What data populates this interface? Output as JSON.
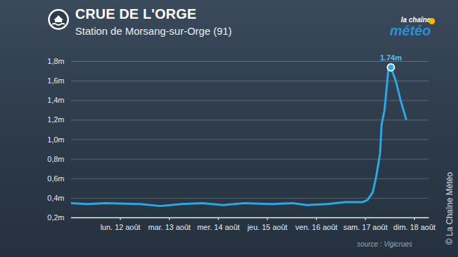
{
  "chart_data": {
    "type": "line",
    "title": "CRUE DE L'ORGE",
    "subtitle": "Station de Morsang-sur-Orge (91)",
    "logo": [
      "la chaîne",
      "météo"
    ],
    "source": "source : Vigicrues",
    "credit": "© La Chaîne Météo",
    "color": "#2aa9e6",
    "x": [
      11.0,
      11.33,
      11.69,
      12.4,
      12.82,
      13.25,
      13.67,
      14.1,
      14.52,
      15.09,
      15.52,
      15.8,
      16.23,
      16.58,
      16.94,
      17.04,
      17.15,
      17.22,
      17.3,
      17.33,
      17.39,
      17.47,
      17.52,
      17.62,
      17.72,
      17.83
    ],
    "values": [
      0.35,
      0.34,
      0.35,
      0.34,
      0.32,
      0.34,
      0.35,
      0.33,
      0.35,
      0.34,
      0.35,
      0.33,
      0.34,
      0.36,
      0.36,
      0.38,
      0.46,
      0.62,
      0.86,
      1.15,
      1.3,
      1.72,
      1.74,
      1.6,
      1.4,
      1.21
    ],
    "xlim": [
      11,
      18.3
    ],
    "xticks": [
      {
        "value": 12,
        "label": "lun. 12 août"
      },
      {
        "value": 13,
        "label": "mar. 13 août"
      },
      {
        "value": 14,
        "label": "mer. 14 août"
      },
      {
        "value": 15,
        "label": "jeu. 15 août"
      },
      {
        "value": 16,
        "label": "ven. 16 août"
      },
      {
        "value": 17,
        "label": "sam. 17 août"
      },
      {
        "value": 18,
        "label": "dim. 18 août"
      }
    ],
    "ylim": [
      0.2,
      1.8
    ],
    "yticks": [
      {
        "value": 0.2,
        "label": "0,2m"
      },
      {
        "value": 0.4,
        "label": "0,4m"
      },
      {
        "value": 0.6,
        "label": "0,6m"
      },
      {
        "value": 0.8,
        "label": "0,8m"
      },
      {
        "value": 1.0,
        "label": "1,0m"
      },
      {
        "value": 1.2,
        "label": "1,2m"
      },
      {
        "value": 1.4,
        "label": "1,4m"
      },
      {
        "value": 1.6,
        "label": "1,6m"
      },
      {
        "value": 1.8,
        "label": "1,8m"
      }
    ],
    "grid": true,
    "annotations": [
      {
        "x": 17.52,
        "y": 1.74,
        "label": "1.74m"
      }
    ]
  }
}
